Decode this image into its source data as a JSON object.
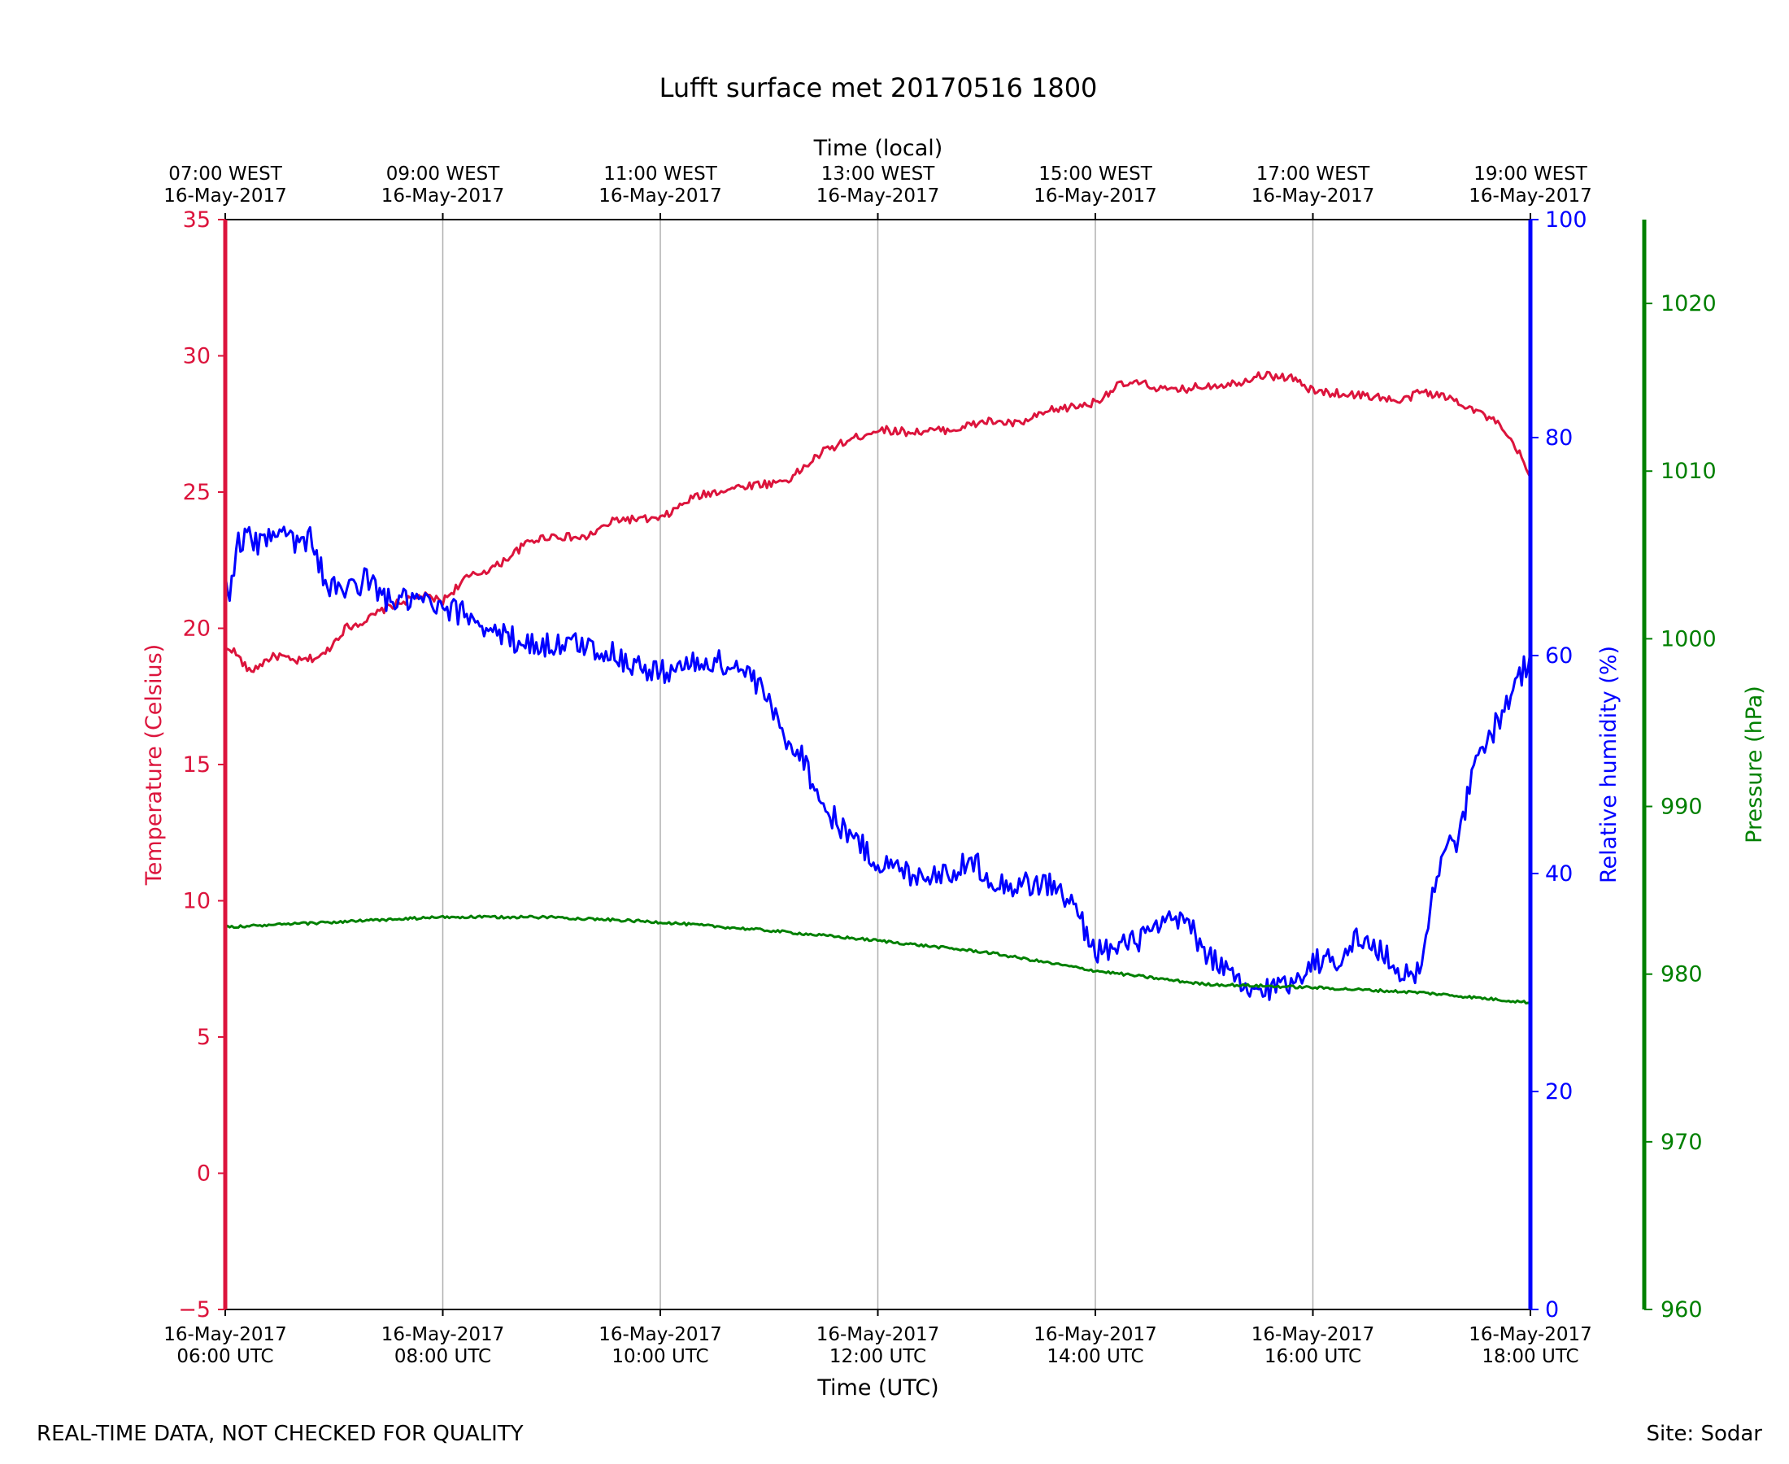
{
  "colors": {
    "temperature": "#dc143c",
    "humidity": "#0000ff",
    "pressure": "#008000",
    "grid": "#b0b0b0",
    "axis": "#000000"
  },
  "footer": {
    "left": "REAL-TIME DATA, NOT CHECKED FOR QUALITY",
    "right": "Site: Sodar"
  },
  "chart_data": {
    "type": "line",
    "title": "Lufft surface met 20170516 1800",
    "xlabel": "Time (UTC)",
    "xlabel_top": "Time (local)",
    "xlim_hours_utc": [
      6,
      18
    ],
    "x_ticks": [
      {
        "hour": 6,
        "bottom": [
          "16-May-2017",
          "06:00 UTC"
        ],
        "top": [
          "07:00 WEST",
          "16-May-2017"
        ]
      },
      {
        "hour": 8,
        "bottom": [
          "16-May-2017",
          "08:00 UTC"
        ],
        "top": [
          "09:00 WEST",
          "16-May-2017"
        ]
      },
      {
        "hour": 10,
        "bottom": [
          "16-May-2017",
          "10:00 UTC"
        ],
        "top": [
          "11:00 WEST",
          "16-May-2017"
        ]
      },
      {
        "hour": 12,
        "bottom": [
          "16-May-2017",
          "12:00 UTC"
        ],
        "top": [
          "13:00 WEST",
          "16-May-2017"
        ]
      },
      {
        "hour": 14,
        "bottom": [
          "16-May-2017",
          "14:00 UTC"
        ],
        "top": [
          "15:00 WEST",
          "16-May-2017"
        ]
      },
      {
        "hour": 16,
        "bottom": [
          "16-May-2017",
          "16:00 UTC"
        ],
        "top": [
          "17:00 WEST",
          "16-May-2017"
        ]
      },
      {
        "hour": 18,
        "bottom": [
          "16-May-2017",
          "18:00 UTC"
        ],
        "top": [
          "19:00 WEST",
          "16-May-2017"
        ]
      }
    ],
    "axes": {
      "temperature": {
        "label": "Temperature (Celsius)",
        "ylim": [
          -5,
          35
        ],
        "ticks": [
          "−5",
          "0",
          "5",
          "10",
          "15",
          "20",
          "25",
          "30",
          "35"
        ],
        "tick_values": [
          -5,
          0,
          5,
          10,
          15,
          20,
          25,
          30,
          35
        ]
      },
      "humidity": {
        "label": "Relative humidity (%)",
        "ylim": [
          0,
          100
        ],
        "ticks": [
          "0",
          "20",
          "40",
          "60",
          "80",
          "100"
        ],
        "tick_values": [
          0,
          20,
          40,
          60,
          80,
          100
        ]
      },
      "pressure": {
        "label": "Pressure (hPa)",
        "ylim": [
          960,
          1025
        ],
        "ticks": [
          "960",
          "970",
          "980",
          "990",
          "1000",
          "1010",
          "1020"
        ],
        "tick_values": [
          960,
          970,
          980,
          990,
          1000,
          1010,
          1020
        ]
      }
    },
    "series": [
      {
        "name": "Temperature",
        "axis": "temperature",
        "noise": 0.15,
        "x": [
          6.0,
          6.05,
          6.15,
          6.22,
          6.3,
          6.4,
          6.5,
          6.6,
          6.7,
          6.8,
          6.9,
          7.0,
          7.1,
          7.3,
          7.5,
          7.8,
          8.0,
          8.2,
          8.5,
          8.8,
          9.0,
          9.3,
          9.6,
          9.9,
          10.0,
          10.3,
          10.6,
          10.9,
          11.0,
          11.2,
          11.5,
          11.8,
          12.0,
          12.3,
          12.7,
          13.0,
          13.3,
          13.6,
          13.9,
          14.0,
          14.2,
          14.4,
          14.7,
          15.0,
          15.3,
          15.5,
          15.8,
          16.0,
          16.3,
          16.6,
          16.8,
          17.0,
          17.3,
          17.5,
          17.7,
          17.9,
          18.0
        ],
        "y": [
          19.2,
          19.3,
          18.8,
          18.4,
          18.6,
          18.9,
          19.0,
          18.8,
          18.8,
          18.9,
          19.0,
          19.5,
          20.0,
          20.3,
          20.8,
          21.2,
          21.0,
          21.8,
          22.3,
          23.2,
          23.4,
          23.3,
          24.0,
          24.0,
          24.0,
          24.8,
          25.1,
          25.3,
          25.3,
          25.5,
          26.5,
          27.0,
          27.3,
          27.2,
          27.3,
          27.6,
          27.5,
          28.0,
          28.2,
          28.3,
          28.9,
          29.0,
          28.7,
          28.9,
          29.0,
          29.3,
          29.2,
          28.7,
          28.6,
          28.5,
          28.3,
          28.7,
          28.4,
          28.0,
          27.5,
          26.4,
          25.5
        ]
      },
      {
        "name": "Relative humidity",
        "axis": "humidity",
        "noise": 1.2,
        "x": [
          6.0,
          6.05,
          6.1,
          6.2,
          6.3,
          6.4,
          6.5,
          6.6,
          6.7,
          6.8,
          6.9,
          7.0,
          7.1,
          7.3,
          7.5,
          7.8,
          8.0,
          8.2,
          8.5,
          8.8,
          9.0,
          9.3,
          9.6,
          9.9,
          10.0,
          10.2,
          10.5,
          10.8,
          10.9,
          11.0,
          11.1,
          11.3,
          11.5,
          11.8,
          12.0,
          12.3,
          12.6,
          12.9,
          13.1,
          13.3,
          13.6,
          13.8,
          14.0,
          14.2,
          14.4,
          14.6,
          14.8,
          15.0,
          15.2,
          15.4,
          15.6,
          15.8,
          16.0,
          16.2,
          16.4,
          16.6,
          16.8,
          16.9,
          17.0,
          17.1,
          17.2,
          17.3,
          17.5,
          17.7,
          17.9,
          18.0
        ],
        "y": [
          67,
          66,
          70,
          71,
          70,
          71,
          72,
          71,
          70,
          71,
          67,
          66,
          66,
          67,
          65,
          65,
          64,
          64,
          62,
          61,
          61,
          61,
          60,
          58.5,
          58.5,
          59,
          59.5,
          58.5,
          57,
          56,
          53,
          51,
          46,
          43,
          41,
          40,
          40,
          41,
          39,
          39,
          39,
          37,
          33,
          33,
          34,
          35,
          36,
          33,
          31,
          29,
          29.5,
          30,
          32,
          32,
          34,
          33,
          31,
          31,
          31,
          38,
          43,
          42,
          50,
          54,
          58,
          60
        ]
      },
      {
        "name": "Pressure",
        "axis": "pressure",
        "noise": 0.08,
        "x": [
          6.0,
          7.0,
          8.0,
          9.0,
          10.0,
          11.0,
          12.0,
          13.0,
          14.0,
          15.0,
          16.0,
          17.0,
          18.0
        ],
        "y": [
          982.8,
          983.1,
          983.4,
          983.4,
          983.1,
          982.6,
          982.0,
          981.3,
          980.2,
          979.4,
          979.2,
          978.9,
          978.3
        ]
      }
    ]
  }
}
